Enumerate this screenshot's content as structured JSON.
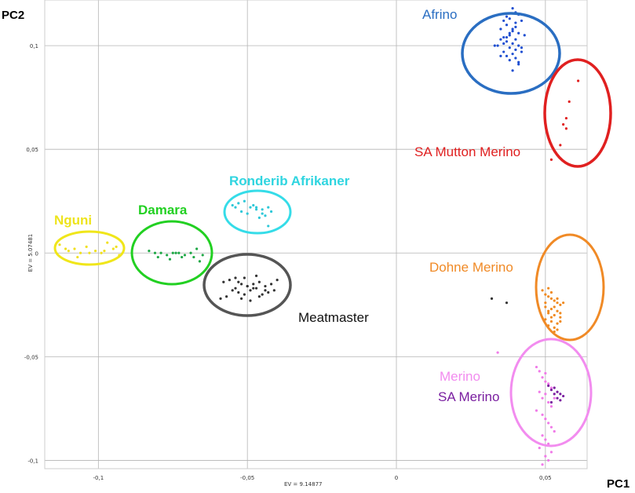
{
  "chart_data": {
    "type": "scatter",
    "title": "",
    "xlabel": "PC1",
    "ylabel": "PC2",
    "x_ev_label": "EV = 9.14877",
    "y_ev_label": "EV = 5.07481",
    "xlim": [
      -0.118,
      0.064
    ],
    "ylim": [
      -0.104,
      0.122
    ],
    "grid": true,
    "x_ticks": [
      -0.1,
      -0.05,
      0,
      0.05
    ],
    "x_tick_labels": [
      "-0,1",
      "-0,05",
      "0",
      "0,05"
    ],
    "y_ticks": [
      -0.1,
      -0.05,
      0,
      0.05,
      0.1
    ],
    "y_tick_labels": [
      "-0,1",
      "-0,05",
      "0",
      "0,05",
      "0,1"
    ],
    "series": [
      {
        "name": "Afrino",
        "color": "#1f4fd1",
        "ellipse_color": "#2a6ec2",
        "label_color": "#2a6ec2",
        "center": [
          0.038,
          0.103
        ],
        "x": [
          0.039,
          0.04,
          0.041,
          0.038,
          0.036,
          0.042,
          0.037,
          0.04,
          0.039,
          0.035,
          0.041,
          0.043,
          0.038,
          0.036,
          0.04,
          0.037,
          0.039,
          0.041,
          0.034,
          0.038,
          0.04,
          0.036,
          0.042,
          0.039,
          0.037,
          0.035,
          0.04,
          0.038,
          0.041,
          0.036,
          0.033,
          0.039,
          0.037,
          0.04,
          0.042,
          0.038,
          0.035,
          0.041,
          0.039,
          0.037
        ],
        "y": [
          0.118,
          0.116,
          0.115,
          0.113,
          0.112,
          0.112,
          0.11,
          0.109,
          0.108,
          0.108,
          0.106,
          0.105,
          0.105,
          0.104,
          0.103,
          0.102,
          0.101,
          0.1,
          0.1,
          0.099,
          0.098,
          0.097,
          0.097,
          0.096,
          0.095,
          0.095,
          0.094,
          0.093,
          0.092,
          0.101,
          0.1,
          0.107,
          0.104,
          0.111,
          0.099,
          0.106,
          0.103,
          0.091,
          0.088,
          0.114
        ]
      },
      {
        "name": "SA Mutton Merino",
        "color": "#e02020",
        "ellipse_color": "#e02020",
        "label_color": "#e02020",
        "center": [
          0.058,
          0.069
        ],
        "x": [
          0.061,
          0.058,
          0.057,
          0.056,
          0.057,
          0.055,
          0.052
        ],
        "y": [
          0.083,
          0.073,
          0.065,
          0.062,
          0.06,
          0.052,
          0.045
        ]
      },
      {
        "name": "Ronderib Afrikaner",
        "color": "#2ec8d8",
        "ellipse_color": "#35dce8",
        "label_color": "#2fd5e0",
        "center": [
          -0.046,
          0.021
        ],
        "x": [
          -0.055,
          -0.053,
          -0.051,
          -0.049,
          -0.047,
          -0.045,
          -0.043,
          -0.052,
          -0.05,
          -0.048,
          -0.044,
          -0.046,
          -0.042,
          -0.054,
          -0.047,
          -0.045,
          -0.043
        ],
        "y": [
          0.023,
          0.024,
          0.025,
          0.022,
          0.022,
          0.021,
          0.022,
          0.02,
          0.019,
          0.023,
          0.018,
          0.017,
          0.02,
          0.022,
          0.021,
          0.019,
          0.013
        ]
      },
      {
        "name": "Nguni",
        "color": "#f0e020",
        "ellipse_color": "#f0e61a",
        "label_color": "#eee41c",
        "center": [
          -0.1,
          0.002
        ],
        "x": [
          -0.113,
          -0.11,
          -0.108,
          -0.106,
          -0.104,
          -0.101,
          -0.099,
          -0.097,
          -0.095,
          -0.093,
          -0.107,
          -0.103,
          -0.098,
          -0.094,
          -0.111
        ],
        "y": [
          0.004,
          0.001,
          0.002,
          0.0,
          0.003,
          0.001,
          0.0,
          0.005,
          0.002,
          -0.001,
          -0.002,
          0.0,
          0.001,
          0.003,
          0.002
        ]
      },
      {
        "name": "Damara",
        "color": "#1fa846",
        "ellipse_color": "#22d022",
        "label_color": "#22d022",
        "center": [
          -0.074,
          -0.001
        ],
        "x": [
          -0.083,
          -0.081,
          -0.079,
          -0.077,
          -0.075,
          -0.073,
          -0.071,
          -0.069,
          -0.067,
          -0.065,
          -0.08,
          -0.076,
          -0.072,
          -0.068,
          -0.066,
          -0.074
        ],
        "y": [
          0.001,
          0.0,
          0.0,
          -0.001,
          0.0,
          0.0,
          -0.001,
          0.0,
          0.002,
          -0.001,
          -0.002,
          -0.003,
          -0.002,
          -0.002,
          -0.004,
          0.0
        ]
      },
      {
        "name": "Meatmaster",
        "color": "#333333",
        "ellipse_color": "#555555",
        "label_color": "#111111",
        "center": [
          -0.048,
          -0.016
        ],
        "x": [
          -0.058,
          -0.056,
          -0.054,
          -0.052,
          -0.05,
          -0.048,
          -0.046,
          -0.044,
          -0.042,
          -0.04,
          -0.055,
          -0.053,
          -0.051,
          -0.049,
          -0.047,
          -0.045,
          -0.043,
          -0.057,
          -0.052,
          -0.05,
          -0.048,
          -0.046,
          -0.044,
          -0.054,
          -0.049,
          -0.047,
          -0.041,
          -0.059,
          -0.053,
          -0.051,
          0.032,
          0.037
        ],
        "y": [
          -0.014,
          -0.013,
          -0.012,
          -0.015,
          -0.016,
          -0.017,
          -0.014,
          -0.016,
          -0.015,
          -0.013,
          -0.018,
          -0.019,
          -0.02,
          -0.018,
          -0.017,
          -0.02,
          -0.019,
          -0.021,
          -0.022,
          -0.016,
          -0.015,
          -0.021,
          -0.018,
          -0.017,
          -0.023,
          -0.011,
          -0.018,
          -0.022,
          -0.014,
          -0.012,
          -0.022,
          -0.024
        ]
      },
      {
        "name": "Dohne Merino",
        "color": "#f08a20",
        "ellipse_color": "#f08a26",
        "label_color": "#f08a26",
        "center": [
          0.057,
          -0.017
        ],
        "x": [
          0.049,
          0.05,
          0.051,
          0.052,
          0.053,
          0.054,
          0.055,
          0.05,
          0.052,
          0.054,
          0.056,
          0.051,
          0.053,
          0.055,
          0.05,
          0.052,
          0.054,
          0.051,
          0.053,
          0.055,
          0.052,
          0.054,
          0.05,
          0.053,
          0.051,
          0.055,
          0.052,
          0.054,
          0.053,
          0.051
        ],
        "y": [
          -0.018,
          -0.02,
          -0.021,
          -0.022,
          -0.023,
          -0.024,
          -0.025,
          -0.026,
          -0.027,
          -0.028,
          -0.024,
          -0.029,
          -0.03,
          -0.031,
          -0.032,
          -0.033,
          -0.034,
          -0.035,
          -0.036,
          -0.029,
          -0.019,
          -0.022,
          -0.024,
          -0.026,
          -0.028,
          -0.033,
          -0.031,
          -0.037,
          -0.038,
          -0.017
        ]
      },
      {
        "name": "Merino",
        "color": "#f07be8",
        "ellipse_color": "#f28cef",
        "label_color": "#f28cef",
        "center": [
          0.052,
          -0.069
        ],
        "x": [
          0.047,
          0.048,
          0.049,
          0.05,
          0.051,
          0.052,
          0.048,
          0.05,
          0.049,
          0.051,
          0.052,
          0.047,
          0.049,
          0.05,
          0.051,
          0.052,
          0.053,
          0.049,
          0.05,
          0.051,
          0.048,
          0.052,
          0.05,
          0.051,
          0.049,
          0.053,
          0.034,
          0.05
        ],
        "y": [
          -0.055,
          -0.057,
          -0.06,
          -0.062,
          -0.063,
          -0.065,
          -0.067,
          -0.068,
          -0.07,
          -0.072,
          -0.074,
          -0.076,
          -0.078,
          -0.08,
          -0.082,
          -0.084,
          -0.086,
          -0.088,
          -0.09,
          -0.092,
          -0.094,
          -0.096,
          -0.098,
          -0.1,
          -0.102,
          -0.07,
          -0.048,
          -0.058
        ]
      },
      {
        "name": "SA Merino",
        "color": "#7a1fa0",
        "ellipse_color": "",
        "label_color": "#7a1fa0",
        "center": [
          0.054,
          -0.069
        ],
        "x": [
          0.051,
          0.052,
          0.053,
          0.054,
          0.055,
          0.056,
          0.052,
          0.054,
          0.053,
          0.055
        ],
        "y": [
          -0.064,
          -0.066,
          -0.068,
          -0.07,
          -0.071,
          -0.069,
          -0.072,
          -0.067,
          -0.065,
          -0.068
        ]
      }
    ]
  }
}
